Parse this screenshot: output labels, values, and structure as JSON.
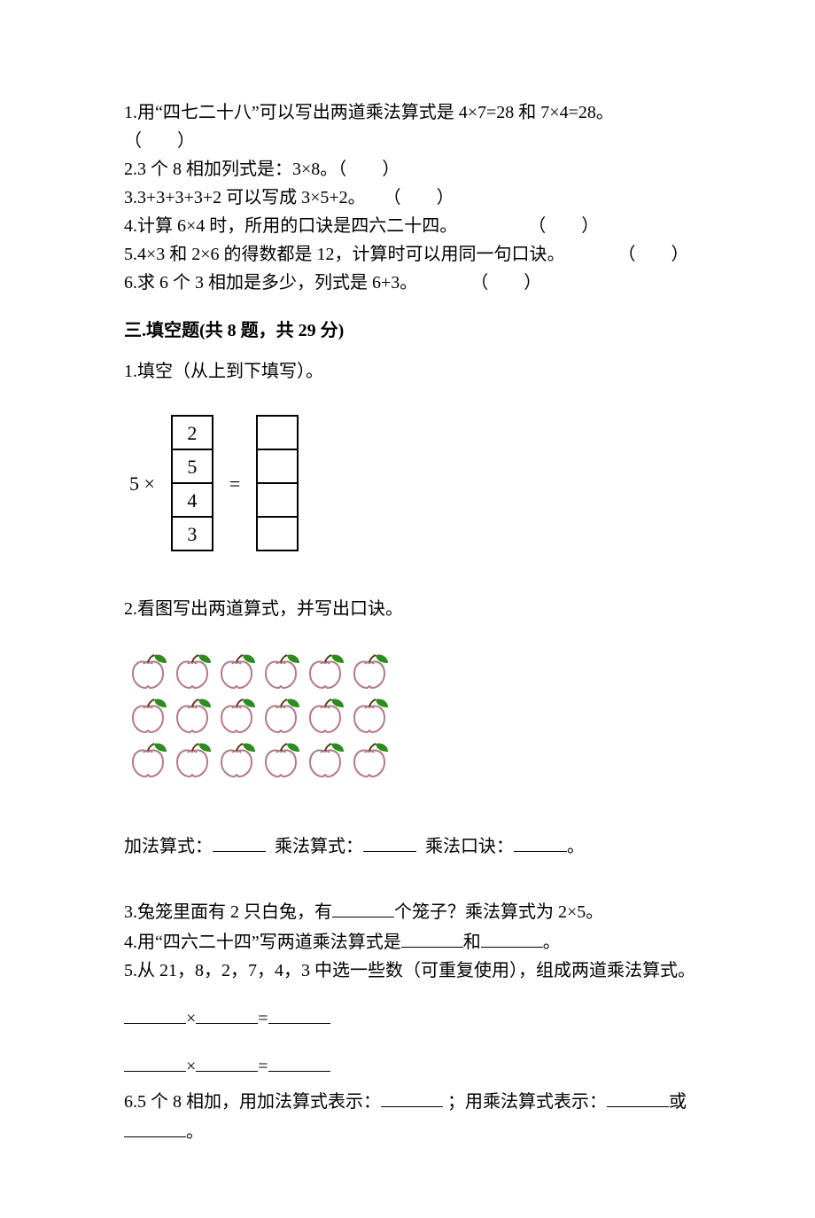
{
  "tf": {
    "q1": "1.用“四七二十八”可以写出两道乘法算式是 4×7=28 和 7×4=28。",
    "q1_paren": "（　　）",
    "q2": "2.3 个 8 相加列式是：3×8。（　　）",
    "q3": "3.3+3+3+3+2 可以写成 3×5+2。　　（　　）",
    "q4": "4.计算 6×4 时，所用的口诀是四六二十四。　　　　　（　　）",
    "q5": "5.4×3 和 2×6 的得数都是 12，计算时可以用同一句口诀。　　　　（　　）",
    "q6": "6.求 6 个 3 相加是多少，列式是 6+3。　　　　（　　）"
  },
  "fill": {
    "header": "三.填空题(共 8 题，共 29 分)",
    "q1_intro": "1.填空（从上到下填写）。",
    "q1_figure": {
      "label": "5 ×",
      "eq": "=",
      "left_cells": [
        "2",
        "5",
        "4",
        "3"
      ],
      "right_cells": [
        "",
        "",
        "",
        ""
      ]
    },
    "q2_intro": "2.看图写出两道算式，并写出口诀。",
    "apples": {
      "rows": 3,
      "cols": 6,
      "apple_fill": "#ffffff",
      "apple_stroke": "#b57a88",
      "leaf_fill": "#2e8b1f"
    },
    "q2_labels": {
      "add_label": "加法算式：",
      "mul_label": "乘法算式：",
      "rule_label": "乘法口诀：",
      "period": "。"
    },
    "q3_a": "3.兔笼里面有 2 只白兔，有",
    "q3_b": "个笼子？乘法算式为 2×5。",
    "q4_a": "4.用“四六二十四”写两道乘法算式是",
    "q4_b": "和",
    "q4_c": "。",
    "q5": "5.从 21，8，2，7，4，3 中选一些数（可重复使用），组成两道乘法算式。",
    "eq_times": "×",
    "eq_eq": "=",
    "q6_a": "6.5 个 8 相加，用加法算式表示：",
    "q6_b": "；用乘法算式表示：",
    "q6_c": "或",
    "q6_d": "。"
  },
  "colors": {
    "text": "#000000",
    "bg": "#ffffff"
  }
}
